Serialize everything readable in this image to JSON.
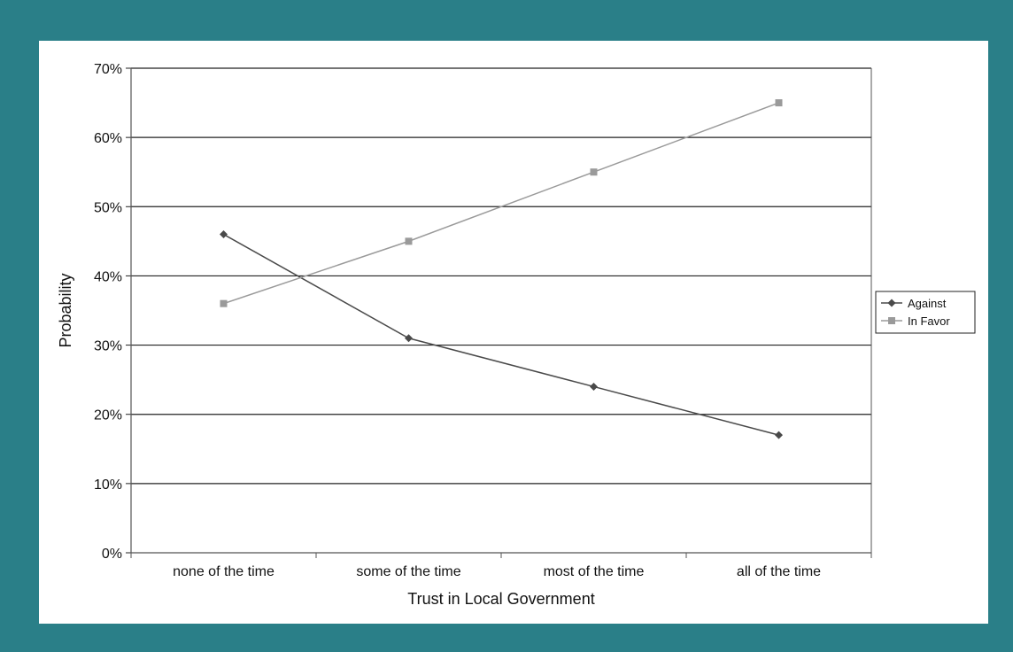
{
  "colors": {
    "background": "#2a7f88",
    "panel": "#ffffff",
    "against": "#4a4a4a",
    "in_favor": "#9a9a9a",
    "gridline": "#222222"
  },
  "chart_data": {
    "type": "line",
    "title": "",
    "xlabel": "Trust in Local Government",
    "ylabel": "Probability",
    "categories": [
      "none of the time",
      "some of the time",
      "most of the time",
      "all of the time"
    ],
    "ylim": [
      0,
      70
    ],
    "yticks": [
      0,
      10,
      20,
      30,
      40,
      50,
      60,
      70
    ],
    "ytick_format": "percent",
    "grid": true,
    "legend_position": "right",
    "series": [
      {
        "name": "Against",
        "marker": "diamond",
        "values": [
          46,
          31,
          24,
          17
        ]
      },
      {
        "name": "In Favor",
        "marker": "square",
        "values": [
          36,
          45,
          55,
          65
        ]
      }
    ]
  }
}
